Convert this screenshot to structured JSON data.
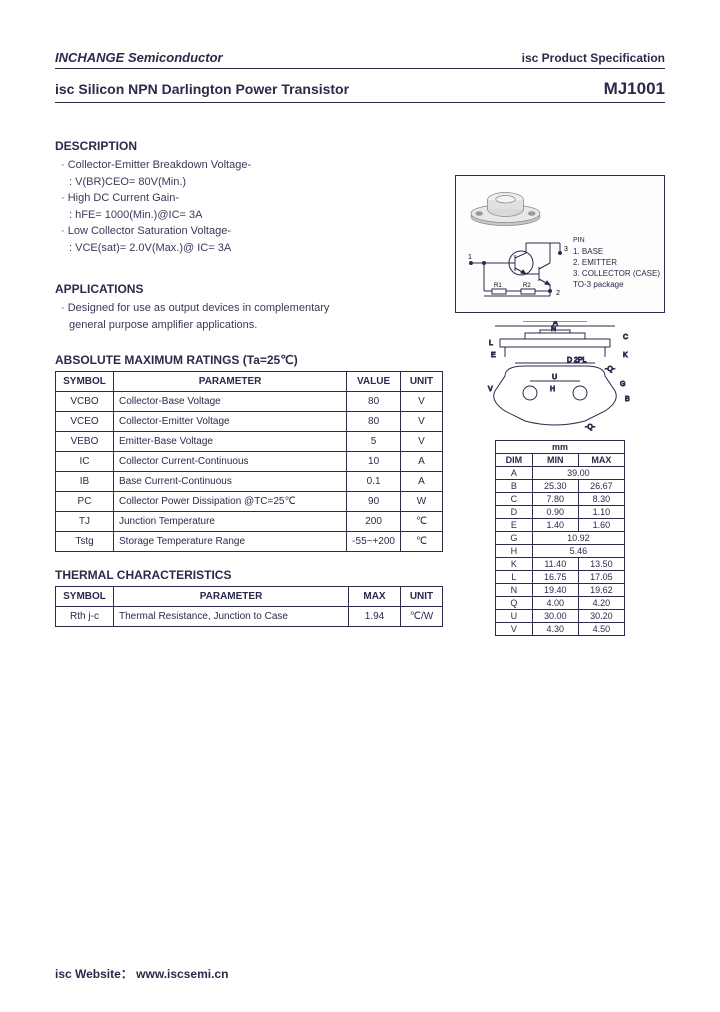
{
  "header": {
    "company": "INCHANGE Semiconductor",
    "spec": "isc Product Specification"
  },
  "title": {
    "name": "isc Silicon NPN Darlington Power Transistor",
    "part": "MJ1001"
  },
  "description": {
    "heading": "DESCRIPTION",
    "lines": [
      "· Collector-Emitter Breakdown Voltage-",
      "  : V(BR)CEO= 80V(Min.)",
      "· High DC Current Gain-",
      "  : hFE= 1000(Min.)@IC= 3A",
      "· Low Collector Saturation Voltage-",
      "  : VCE(sat)= 2.0V(Max.)@ IC= 3A"
    ]
  },
  "applications": {
    "heading": "APPLICATIONS",
    "lines": [
      "· Designed for use as output devices in complementary",
      "  general purpose amplifier applications."
    ]
  },
  "pinout": {
    "header": "PIN",
    "pins": [
      "1. BASE",
      "2. EMITTER",
      "3. COLLECTOR (CASE)"
    ],
    "pkg": "TO-3 package"
  },
  "amr": {
    "heading": "ABSOLUTE MAXIMUM RATINGS (Ta=25℃)",
    "cols": [
      "SYMBOL",
      "PARAMETER",
      "VALUE",
      "UNIT"
    ],
    "rows": [
      [
        "VCBO",
        "Collector-Base Voltage",
        "80",
        "V"
      ],
      [
        "VCEO",
        "Collector-Emitter Voltage",
        "80",
        "V"
      ],
      [
        "VEBO",
        "Emitter-Base Voltage",
        "5",
        "V"
      ],
      [
        "IC",
        "Collector Current-Continuous",
        "10",
        "A"
      ],
      [
        "IB",
        "Base Current-Continuous",
        "0.1",
        "A"
      ],
      [
        "PC",
        "Collector Power Dissipation @TC=25℃",
        "90",
        "W"
      ],
      [
        "TJ",
        "Junction Temperature",
        "200",
        "℃"
      ],
      [
        "Tstg",
        "Storage Temperature Range",
        "-55~+200",
        "℃"
      ]
    ]
  },
  "thermal": {
    "heading": "THERMAL CHARACTERISTICS",
    "cols": [
      "SYMBOL",
      "PARAMETER",
      "MAX",
      "UNIT"
    ],
    "rows": [
      [
        "Rth j-c",
        "Thermal Resistance, Junction to Case",
        "1.94",
        "℃/W"
      ]
    ]
  },
  "dims": {
    "unit": "mm",
    "cols": [
      "DIM",
      "MIN",
      "MAX"
    ],
    "rows": [
      [
        "A",
        "39.00",
        ""
      ],
      [
        "B",
        "25.30",
        "26.67"
      ],
      [
        "C",
        "7.80",
        "8.30"
      ],
      [
        "D",
        "0.90",
        "1.10"
      ],
      [
        "E",
        "1.40",
        "1.60"
      ],
      [
        "G",
        "10.92",
        ""
      ],
      [
        "H",
        "5.46",
        ""
      ],
      [
        "K",
        "11.40",
        "13.50"
      ],
      [
        "L",
        "16.75",
        "17.05"
      ],
      [
        "N",
        "19.40",
        "19.62"
      ],
      [
        "Q",
        "4.00",
        "4.20"
      ],
      [
        "U",
        "30.00",
        "30.20"
      ],
      [
        "V",
        "4.30",
        "4.50"
      ]
    ]
  },
  "footer": {
    "label": "isc Website：",
    "url": "www.iscsemi.cn"
  }
}
